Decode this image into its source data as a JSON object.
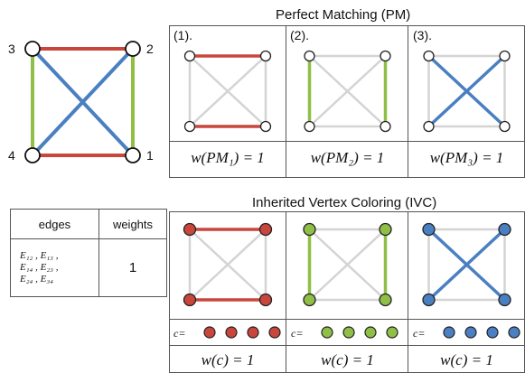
{
  "main_graph": {
    "node_labels": [
      "1",
      "2",
      "3",
      "4"
    ]
  },
  "pm_section": {
    "title": "Perfect Matching (PM)",
    "panels": [
      {
        "label": "(1).",
        "weight": "w(PM₁) = 1",
        "color": "#c9463d"
      },
      {
        "label": "(2).",
        "weight": "w(PM₂) = 1",
        "color": "#8fbf47"
      },
      {
        "label": "(3).",
        "weight": "w(PM₃) = 1",
        "color": "#4a7fc1"
      }
    ]
  },
  "ivc_section": {
    "title": "Inherited Vertex Coloring (IVC)",
    "panels": [
      {
        "coloring_label": "c=",
        "weight": "w(c) = 1",
        "color": "#c9463d"
      },
      {
        "coloring_label": "c=",
        "weight": "w(c) = 1",
        "color": "#8fbf47"
      },
      {
        "coloring_label": "c=",
        "weight": "w(c) = 1",
        "color": "#4a7fc1"
      }
    ]
  },
  "table": {
    "headers": [
      "edges",
      "weights"
    ],
    "edges_line1": "E₁₂ , E₁₃ ,",
    "edges_line2": "E₁₄ , E₂₃ ,",
    "edges_line3": "E₂₄ , E₃₄",
    "weight": "1"
  },
  "colors": {
    "red": "#c9463d",
    "green": "#8fbf47",
    "blue": "#4a7fc1",
    "gray": "#d4d4d4"
  }
}
